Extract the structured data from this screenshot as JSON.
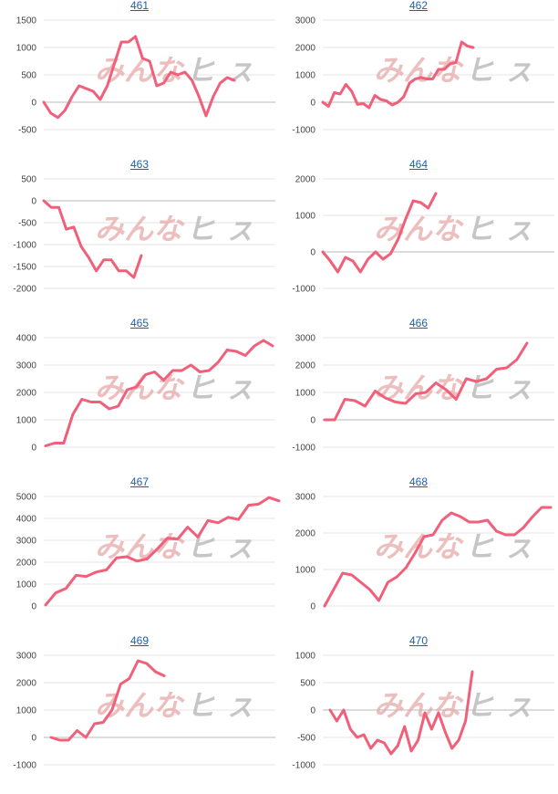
{
  "watermark": {
    "part_a": "みんな",
    "part_b": "ヒ ㇲ"
  },
  "colors": {
    "series": "#f0607a",
    "grid": "#e4e4e4",
    "title": "#1a5fb4"
  },
  "chart_data": [
    {
      "type": "line",
      "title": "461",
      "ylim": [
        -500,
        1500
      ],
      "yticks": [
        -500,
        0,
        500,
        1000,
        1500
      ],
      "values": [
        0,
        -200,
        -280,
        -150,
        100,
        300,
        250,
        200,
        50,
        300,
        700,
        1100,
        1100,
        1200,
        800,
        750,
        300,
        350,
        550,
        500,
        550,
        400,
        100,
        -250,
        100,
        350,
        450,
        400
      ]
    },
    {
      "type": "line",
      "title": "462",
      "ylim": [
        -1000,
        3000
      ],
      "yticks": [
        -1000,
        0,
        1000,
        2000,
        3000
      ],
      "values": [
        0,
        -150,
        350,
        300,
        650,
        400,
        -80,
        -50,
        -200,
        250,
        100,
        50,
        -100,
        0,
        200,
        700,
        850,
        900,
        850,
        850,
        1200,
        1200,
        1400,
        1450,
        2200,
        2050,
        2000
      ]
    },
    {
      "type": "line",
      "title": "463",
      "ylim": [
        -2000,
        500
      ],
      "yticks": [
        -2000,
        -1500,
        -1000,
        -500,
        0,
        500
      ],
      "values": [
        0,
        -150,
        -150,
        -650,
        -600,
        -1050,
        -1300,
        -1600,
        -1350,
        -1350,
        -1600,
        -1600,
        -1750,
        -1250
      ]
    },
    {
      "type": "line",
      "title": "464",
      "ylim": [
        -1000,
        2000
      ],
      "yticks": [
        -1000,
        0,
        1000,
        2000
      ],
      "values": [
        0,
        -250,
        -550,
        -150,
        -250,
        -550,
        -200,
        0,
        -200,
        -50,
        350,
        900,
        1400,
        1350,
        1200,
        1600
      ]
    },
    {
      "type": "line",
      "title": "465",
      "ylim": [
        0,
        4000
      ],
      "yticks": [
        0,
        1000,
        2000,
        3000,
        4000
      ],
      "values": [
        50,
        150,
        150,
        1200,
        1750,
        1650,
        1650,
        1400,
        1500,
        2100,
        2200,
        2650,
        2750,
        2450,
        2800,
        2800,
        3000,
        2750,
        2800,
        3100,
        3550,
        3500,
        3350,
        3700,
        3900,
        3700
      ]
    },
    {
      "type": "line",
      "title": "466",
      "ylim": [
        -1000,
        3000
      ],
      "yticks": [
        -1000,
        0,
        1000,
        2000,
        3000
      ],
      "values": [
        0,
        0,
        750,
        700,
        500,
        1050,
        800,
        650,
        600,
        950,
        1000,
        1350,
        1100,
        750,
        1500,
        1400,
        1500,
        1850,
        1900,
        2200,
        2800
      ]
    },
    {
      "type": "line",
      "title": "467",
      "ylim": [
        0,
        5000
      ],
      "yticks": [
        0,
        1000,
        2000,
        3000,
        4000,
        5000
      ],
      "values": [
        50,
        600,
        800,
        1400,
        1350,
        1550,
        1650,
        2200,
        2250,
        2050,
        2150,
        2600,
        3100,
        3050,
        3600,
        3150,
        3900,
        3800,
        4050,
        3950,
        4600,
        4650,
        4950,
        4800
      ]
    },
    {
      "type": "line",
      "title": "468",
      "ylim": [
        0,
        3000
      ],
      "yticks": [
        0,
        1000,
        2000,
        3000
      ],
      "values": [
        0,
        450,
        900,
        850,
        650,
        450,
        150,
        650,
        800,
        1050,
        1450,
        1900,
        1950,
        2350,
        2550,
        2450,
        2300,
        2300,
        2350,
        2050,
        1950,
        1950,
        2150,
        2450,
        2700,
        2700
      ]
    },
    {
      "type": "line",
      "title": "469",
      "ylim": [
        -1000,
        3000
      ],
      "yticks": [
        -1000,
        0,
        1000,
        2000,
        3000
      ],
      "values": [
        0,
        -100,
        -100,
        250,
        0,
        500,
        550,
        1000,
        1950,
        2150,
        2800,
        2700,
        2400,
        2250
      ]
    },
    {
      "type": "line",
      "title": "470",
      "ylim": [
        -1000,
        1000
      ],
      "yticks": [
        -1000,
        -500,
        0,
        500,
        1000
      ],
      "values": [
        0,
        -200,
        0,
        -350,
        -500,
        -450,
        -700,
        -550,
        -600,
        -800,
        -650,
        -300,
        -750,
        -550,
        -50,
        -350,
        -50,
        -400,
        -700,
        -550,
        -200,
        700
      ]
    }
  ]
}
